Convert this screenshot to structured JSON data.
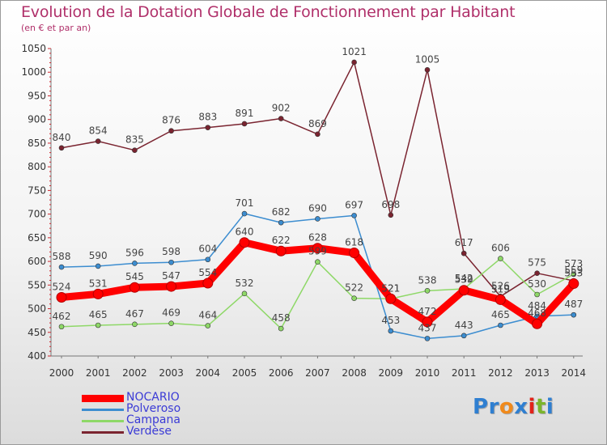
{
  "title": "Evolution de la Dotation Globale de Fonctionnement par Habitant",
  "subtitle": "(en € et par an)",
  "brand": {
    "text": "Proxiti",
    "letters": [
      {
        "ch": "P",
        "color": "#2f7fd1"
      },
      {
        "ch": "r",
        "color": "#2f7fd1"
      },
      {
        "ch": "o",
        "color": "#f08a1c"
      },
      {
        "ch": "x",
        "color": "#2f7fd1"
      },
      {
        "ch": "i",
        "color": "#e2231a"
      },
      {
        "ch": "t",
        "color": "#7bb52c"
      },
      {
        "ch": "i",
        "color": "#2f7fd1"
      }
    ]
  },
  "chart_data": {
    "type": "line",
    "title": "Evolution de la Dotation Globale de Fonctionnement par Habitant",
    "subtitle": "(en € et par an)",
    "x": [
      "2000",
      "2001",
      "2002",
      "2003",
      "2004",
      "2005",
      "2006",
      "2007",
      "2008",
      "2009",
      "2010",
      "2011",
      "2012",
      "2013",
      "2014"
    ],
    "ylim": [
      400,
      1050
    ],
    "yticks": [
      400,
      450,
      500,
      550,
      600,
      650,
      700,
      750,
      800,
      850,
      900,
      950,
      1000,
      1050
    ],
    "grid": false,
    "legend_position": "bottom-left",
    "series": [
      {
        "name": "NOCARIO",
        "color": "#ff0000",
        "emphasis": true,
        "values": [
          524,
          531,
          545,
          547,
          554,
          640,
          622,
          628,
          618,
          521,
          472,
          539,
          519,
          468,
          553
        ]
      },
      {
        "name": "Polveroso",
        "color": "#3c8dd0",
        "values": [
          588,
          590,
          596,
          598,
          604,
          701,
          682,
          690,
          697,
          453,
          437,
          443,
          465,
          484,
          487
        ]
      },
      {
        "name": "Campana",
        "color": "#8ed867",
        "values": [
          462,
          465,
          467,
          469,
          464,
          532,
          458,
          599,
          522,
          521,
          538,
          542,
          606,
          530,
          573
        ]
      },
      {
        "name": "Verdèse",
        "color": "#7a2430",
        "values": [
          840,
          854,
          835,
          876,
          883,
          891,
          902,
          869,
          1021,
          698,
          1005,
          617,
          526,
          575,
          559
        ]
      }
    ],
    "annotations": [
      {
        "series": "Campana",
        "x": "2007",
        "value_label": "599"
      }
    ]
  }
}
